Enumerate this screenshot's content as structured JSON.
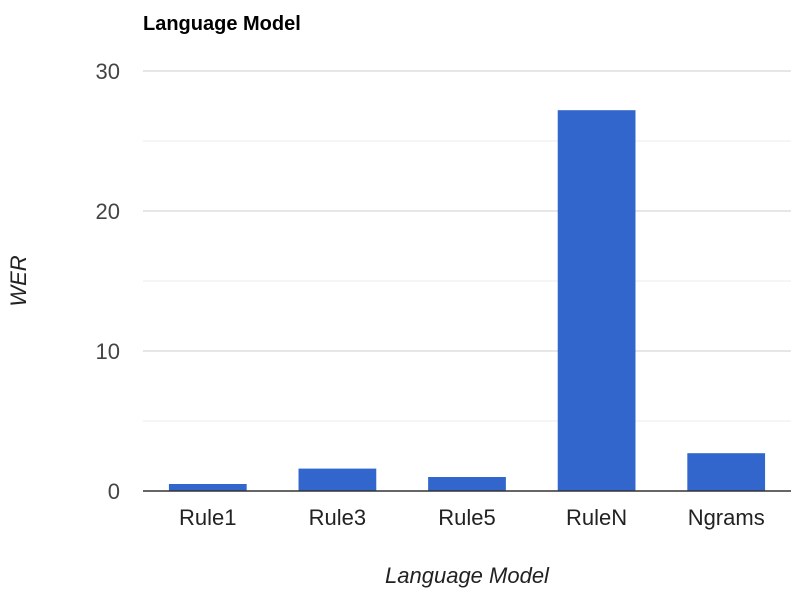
{
  "chart_data": {
    "type": "bar",
    "title": "Language Model",
    "xlabel": "Language Model",
    "ylabel": "WER",
    "categories": [
      "Rule1",
      "Rule3",
      "Rule5",
      "RuleN",
      "Ngrams"
    ],
    "values": [
      0.5,
      1.6,
      1.0,
      27.2,
      2.7
    ],
    "ylim": [
      0,
      30
    ],
    "yticks": [
      "0",
      "10",
      "20",
      "30"
    ],
    "grid": true,
    "legend": "none",
    "colors": {
      "bar": "#3366cc",
      "gridline": "#cccccc",
      "minor_gridline": "#ebebeb",
      "axis": "#333333"
    }
  }
}
